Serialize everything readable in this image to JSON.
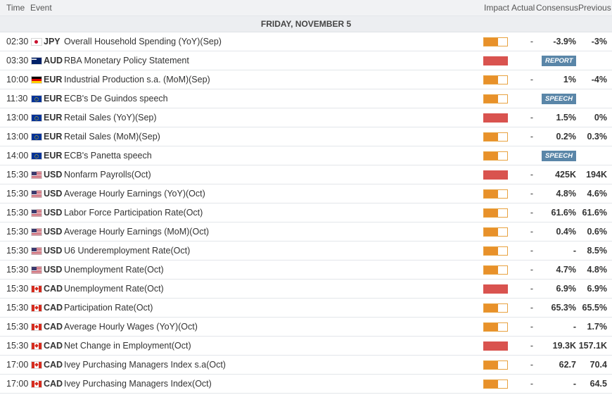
{
  "header": {
    "time": "Time",
    "event": "Event",
    "impact": "Impact",
    "actual": "Actual",
    "consensus": "Consensus",
    "previous": "Previous"
  },
  "date_label": "FRIDAY, NOVEMBER 5",
  "events": [
    {
      "time": "02:30",
      "currency": "JPY",
      "flag": "japan-flag-icon",
      "event": "Overall Household Spending (YoY)(Sep)",
      "impact": "medium",
      "actual": "-",
      "consensus": "-3.9%",
      "previous": "-3%"
    },
    {
      "time": "03:30",
      "currency": "AUD",
      "flag": "australia-flag-icon",
      "event": "RBA Monetary Policy Statement",
      "impact": "high",
      "actual": "",
      "badge": "REPORT"
    },
    {
      "time": "10:00",
      "currency": "EUR",
      "flag": "germany-flag-icon",
      "event": "Industrial Production s.a. (MoM)(Sep)",
      "impact": "medium",
      "actual": "-",
      "consensus": "1%",
      "previous": "-4%"
    },
    {
      "time": "11:30",
      "currency": "EUR",
      "flag": "eu-flag-icon",
      "event": "ECB's De Guindos speech",
      "impact": "medium",
      "actual": "",
      "badge": "SPEECH"
    },
    {
      "time": "13:00",
      "currency": "EUR",
      "flag": "eu-flag-icon",
      "event": "Retail Sales (YoY)(Sep)",
      "impact": "high",
      "actual": "-",
      "consensus": "1.5%",
      "previous": "0%"
    },
    {
      "time": "13:00",
      "currency": "EUR",
      "flag": "eu-flag-icon",
      "event": "Retail Sales (MoM)(Sep)",
      "impact": "medium",
      "actual": "-",
      "consensus": "0.2%",
      "previous": "0.3%"
    },
    {
      "time": "14:00",
      "currency": "EUR",
      "flag": "eu-flag-icon",
      "event": "ECB's Panetta speech",
      "impact": "medium",
      "actual": "",
      "badge": "SPEECH"
    },
    {
      "time": "15:30",
      "currency": "USD",
      "flag": "us-flag-icon",
      "event": "Nonfarm Payrolls(Oct)",
      "impact": "high",
      "actual": "-",
      "consensus": "425K",
      "previous": "194K"
    },
    {
      "time": "15:30",
      "currency": "USD",
      "flag": "us-flag-icon",
      "event": "Average Hourly Earnings (YoY)(Oct)",
      "impact": "medium",
      "actual": "-",
      "consensus": "4.8%",
      "previous": "4.6%"
    },
    {
      "time": "15:30",
      "currency": "USD",
      "flag": "us-flag-icon",
      "event": "Labor Force Participation Rate(Oct)",
      "impact": "medium",
      "actual": "-",
      "consensus": "61.6%",
      "previous": "61.6%"
    },
    {
      "time": "15:30",
      "currency": "USD",
      "flag": "us-flag-icon",
      "event": "Average Hourly Earnings (MoM)(Oct)",
      "impact": "medium",
      "actual": "-",
      "consensus": "0.4%",
      "previous": "0.6%"
    },
    {
      "time": "15:30",
      "currency": "USD",
      "flag": "us-flag-icon",
      "event": "U6 Underemployment Rate(Oct)",
      "impact": "medium",
      "actual": "-",
      "consensus": "-",
      "previous": "8.5%"
    },
    {
      "time": "15:30",
      "currency": "USD",
      "flag": "us-flag-icon",
      "event": "Unemployment Rate(Oct)",
      "impact": "medium",
      "actual": "-",
      "consensus": "4.7%",
      "previous": "4.8%"
    },
    {
      "time": "15:30",
      "currency": "CAD",
      "flag": "canada-flag-icon",
      "event": "Unemployment Rate(Oct)",
      "impact": "high",
      "actual": "-",
      "consensus": "6.9%",
      "previous": "6.9%"
    },
    {
      "time": "15:30",
      "currency": "CAD",
      "flag": "canada-flag-icon",
      "event": "Participation Rate(Oct)",
      "impact": "medium",
      "actual": "-",
      "consensus": "65.3%",
      "previous": "65.5%"
    },
    {
      "time": "15:30",
      "currency": "CAD",
      "flag": "canada-flag-icon",
      "event": "Average Hourly Wages (YoY)(Oct)",
      "impact": "medium",
      "actual": "-",
      "consensus": "-",
      "previous": "1.7%"
    },
    {
      "time": "15:30",
      "currency": "CAD",
      "flag": "canada-flag-icon",
      "event": "Net Change in Employment(Oct)",
      "impact": "high",
      "actual": "-",
      "consensus": "19.3K",
      "previous": "157.1K"
    },
    {
      "time": "17:00",
      "currency": "CAD",
      "flag": "canada-flag-icon",
      "event": "Ivey Purchasing Managers Index s.a(Oct)",
      "impact": "medium",
      "actual": "-",
      "consensus": "62.7",
      "previous": "70.4"
    },
    {
      "time": "17:00",
      "currency": "CAD",
      "flag": "canada-flag-icon",
      "event": "Ivey Purchasing Managers Index(Oct)",
      "impact": "medium",
      "actual": "-",
      "consensus": "-",
      "previous": "64.5"
    }
  ],
  "colors": {
    "impact_high": "#d9534f",
    "impact_medium": "#e8912a",
    "badge": "#5a86a8"
  }
}
